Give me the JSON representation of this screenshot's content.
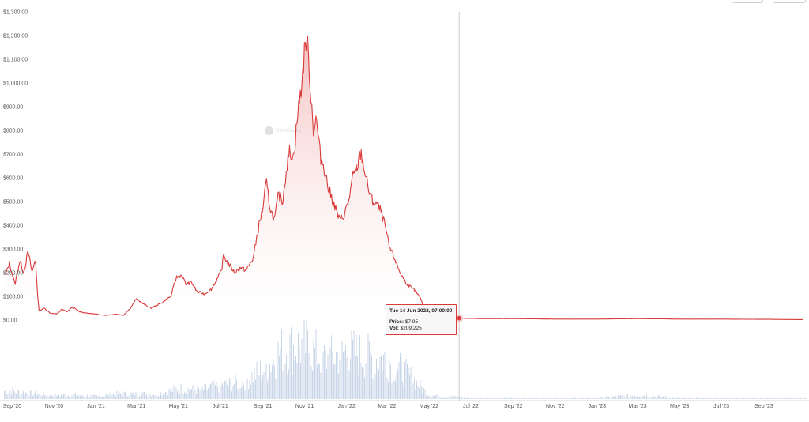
{
  "chart_data": {
    "type": "area",
    "title": "",
    "xlabel": "",
    "ylabel": "",
    "ylim": [
      0,
      1300
    ],
    "y_ticks": [
      "$1,300.00",
      "$1,200.00",
      "$1,100.00",
      "$1,000.00",
      "$900.00",
      "$800.00",
      "$700.00",
      "$600.00",
      "$500.00",
      "$400.00",
      "$300.00",
      "$200.00",
      "$100.00",
      "$0.00"
    ],
    "y_tick_values": [
      1300,
      1200,
      1100,
      1000,
      900,
      800,
      700,
      600,
      500,
      400,
      300,
      200,
      100,
      0
    ],
    "x_ticks": [
      {
        "label": "Sep '20",
        "date": "2020-09-01"
      },
      {
        "label": "Nov '20",
        "date": "2020-11-01"
      },
      {
        "label": "Jan '21",
        "date": "2021-01-01"
      },
      {
        "label": "Mar '21",
        "date": "2021-03-01"
      },
      {
        "label": "May '21",
        "date": "2021-05-01"
      },
      {
        "label": "Jul '21",
        "date": "2021-07-01"
      },
      {
        "label": "Sep '21",
        "date": "2021-09-01"
      },
      {
        "label": "Nov '21",
        "date": "2021-11-01"
      },
      {
        "label": "Jan '22",
        "date": "2022-01-01"
      },
      {
        "label": "Mar '22",
        "date": "2022-03-01"
      },
      {
        "label": "May '22",
        "date": "2022-05-01"
      },
      {
        "label": "Jul '22",
        "date": "2022-07-01"
      },
      {
        "label": "Sep '22",
        "date": "2022-09-01"
      },
      {
        "label": "Nov '22",
        "date": "2022-11-01"
      },
      {
        "label": "Jan '23",
        "date": "2023-01-01"
      },
      {
        "label": "Mar '23",
        "date": "2023-03-01"
      },
      {
        "label": "May '23",
        "date": "2023-05-01"
      },
      {
        "label": "Jul '23",
        "date": "2023-07-01"
      },
      {
        "label": "Sep '23",
        "date": "2023-09-01"
      }
    ],
    "x_range": [
      "2020-08-20",
      "2023-11-01"
    ],
    "series": [
      {
        "color": "#d93a3a",
        "points": [
          [
            "2020-08-22",
            190
          ],
          [
            "2020-08-28",
            240
          ],
          [
            "2020-09-05",
            150
          ],
          [
            "2020-09-12",
            250
          ],
          [
            "2020-09-18",
            200
          ],
          [
            "2020-09-24",
            290
          ],
          [
            "2020-09-30",
            200
          ],
          [
            "2020-10-05",
            260
          ],
          [
            "2020-10-08",
            100
          ],
          [
            "2020-10-10",
            40
          ],
          [
            "2020-10-18",
            50
          ],
          [
            "2020-10-26",
            30
          ],
          [
            "2020-11-05",
            25
          ],
          [
            "2020-11-12",
            45
          ],
          [
            "2020-11-20",
            35
          ],
          [
            "2020-11-28",
            55
          ],
          [
            "2020-12-08",
            35
          ],
          [
            "2020-12-18",
            30
          ],
          [
            "2021-01-01",
            25
          ],
          [
            "2021-01-15",
            20
          ],
          [
            "2021-01-30",
            25
          ],
          [
            "2021-02-10",
            20
          ],
          [
            "2021-02-20",
            50
          ],
          [
            "2021-03-01",
            90
          ],
          [
            "2021-03-10",
            70
          ],
          [
            "2021-03-22",
            50
          ],
          [
            "2021-04-05",
            70
          ],
          [
            "2021-04-20",
            100
          ],
          [
            "2021-04-28",
            180
          ],
          [
            "2021-05-06",
            190
          ],
          [
            "2021-05-12",
            150
          ],
          [
            "2021-05-20",
            160
          ],
          [
            "2021-05-28",
            120
          ],
          [
            "2021-06-08",
            110
          ],
          [
            "2021-06-18",
            130
          ],
          [
            "2021-06-28",
            180
          ],
          [
            "2021-07-03",
            210
          ],
          [
            "2021-07-06",
            275
          ],
          [
            "2021-07-10",
            250
          ],
          [
            "2021-07-15",
            230
          ],
          [
            "2021-07-22",
            200
          ],
          [
            "2021-07-30",
            220
          ],
          [
            "2021-08-08",
            210
          ],
          [
            "2021-08-18",
            260
          ],
          [
            "2021-08-25",
            380
          ],
          [
            "2021-09-01",
            470
          ],
          [
            "2021-09-06",
            580
          ],
          [
            "2021-09-12",
            470
          ],
          [
            "2021-09-18",
            420
          ],
          [
            "2021-09-24",
            530
          ],
          [
            "2021-09-30",
            500
          ],
          [
            "2021-10-05",
            630
          ],
          [
            "2021-10-10",
            710
          ],
          [
            "2021-10-16",
            690
          ],
          [
            "2021-10-22",
            870
          ],
          [
            "2021-10-28",
            1000
          ],
          [
            "2021-11-01",
            1140
          ],
          [
            "2021-11-04",
            1200
          ],
          [
            "2021-11-08",
            1050
          ],
          [
            "2021-11-10",
            950
          ],
          [
            "2021-11-14",
            800
          ],
          [
            "2021-11-18",
            850
          ],
          [
            "2021-11-24",
            690
          ],
          [
            "2021-11-30",
            640
          ],
          [
            "2021-12-05",
            560
          ],
          [
            "2021-12-10",
            520
          ],
          [
            "2021-12-16",
            470
          ],
          [
            "2021-12-22",
            420
          ],
          [
            "2021-12-28",
            440
          ],
          [
            "2022-01-04",
            500
          ],
          [
            "2022-01-10",
            600
          ],
          [
            "2022-01-16",
            640
          ],
          [
            "2022-01-22",
            710
          ],
          [
            "2022-01-28",
            620
          ],
          [
            "2022-02-03",
            540
          ],
          [
            "2022-02-08",
            500
          ],
          [
            "2022-02-14",
            490
          ],
          [
            "2022-02-20",
            460
          ],
          [
            "2022-02-26",
            400
          ],
          [
            "2022-03-04",
            310
          ],
          [
            "2022-03-12",
            260
          ],
          [
            "2022-03-20",
            200
          ],
          [
            "2022-03-28",
            160
          ],
          [
            "2022-04-04",
            140
          ],
          [
            "2022-04-12",
            120
          ],
          [
            "2022-04-20",
            85
          ],
          [
            "2022-04-22",
            60
          ],
          [
            "2022-05-01",
            20
          ],
          [
            "2022-05-15",
            12
          ],
          [
            "2022-06-14",
            8
          ],
          [
            "2022-07-15",
            6
          ],
          [
            "2022-09-01",
            6
          ],
          [
            "2022-11-01",
            4
          ],
          [
            "2023-01-01",
            4
          ],
          [
            "2023-03-01",
            6
          ],
          [
            "2023-05-01",
            4
          ],
          [
            "2023-07-01",
            4
          ],
          [
            "2023-09-01",
            3
          ],
          [
            "2023-10-28",
            2
          ]
        ]
      }
    ],
    "volume": {
      "color": "#c9d6e8",
      "description_units": "relative",
      "bars": [
        [
          "2020-09-01",
          6
        ],
        [
          "2020-10-01",
          4
        ],
        [
          "2020-11-01",
          3
        ],
        [
          "2020-12-01",
          3
        ],
        [
          "2021-01-01",
          2
        ],
        [
          "2021-02-01",
          4
        ],
        [
          "2021-03-01",
          4
        ],
        [
          "2021-04-01",
          4
        ],
        [
          "2021-05-01",
          8
        ],
        [
          "2021-06-01",
          7
        ],
        [
          "2021-07-01",
          10
        ],
        [
          "2021-08-01",
          13
        ],
        [
          "2021-09-01",
          22
        ],
        [
          "2021-10-01",
          38
        ],
        [
          "2021-11-01",
          40
        ],
        [
          "2021-12-01",
          30
        ],
        [
          "2022-01-01",
          36
        ],
        [
          "2022-02-01",
          32
        ],
        [
          "2022-03-01",
          30
        ],
        [
          "2022-04-01",
          18
        ],
        [
          "2022-05-01",
          3
        ],
        [
          "2022-06-01",
          2
        ],
        [
          "2022-07-01",
          1
        ],
        [
          "2022-09-01",
          1
        ],
        [
          "2022-11-01",
          1
        ],
        [
          "2023-01-01",
          1
        ],
        [
          "2023-03-01",
          3
        ],
        [
          "2023-05-01",
          1
        ],
        [
          "2023-07-01",
          1
        ],
        [
          "2023-09-01",
          1
        ]
      ]
    },
    "crosshair": {
      "date": "2022-06-14",
      "value": 7.95
    },
    "tooltip": {
      "title": "Tue 14 Jun 2022, 07:00:00",
      "price_label": "Price:",
      "price_value": "$7.95",
      "vol_label": "Vol:",
      "vol_value": "$209,225"
    },
    "watermark": "CoinGecko",
    "grid": false,
    "legend": "none"
  }
}
